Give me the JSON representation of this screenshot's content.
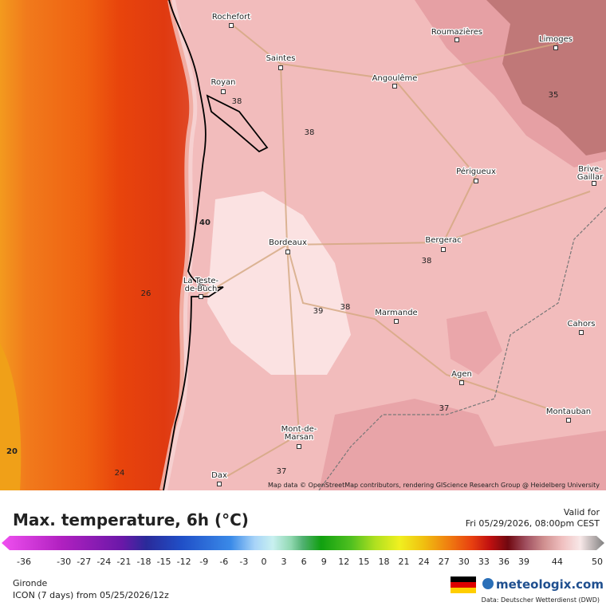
{
  "header": {
    "title": "Max. temperature, 6h (°C)",
    "valid_label": "Valid for",
    "valid_time": "Fri 05/29/2026, 08:00pm CEST"
  },
  "map": {
    "attribution": "Map data © OpenStreetMap contributors, rendering GIScience Research Group @ Heidelberg University",
    "cities": [
      [
        "Rochefort"
      ],
      [
        "Saintes"
      ],
      [
        "Royan"
      ],
      [
        "Angoulême"
      ],
      [
        "Roumazières"
      ],
      [
        "Limoges"
      ],
      [
        "Périgueux"
      ],
      [
        "Brive-",
        "Gaillar"
      ],
      [
        "Bordeaux"
      ],
      [
        "Bergerac"
      ],
      [
        "La Teste-",
        "de-Buch"
      ],
      [
        "Marmande"
      ],
      [
        "Cahors"
      ],
      [
        "Agen"
      ],
      [
        "Montauban"
      ],
      [
        "Mont-de-",
        "Marsan"
      ],
      [
        "Dax"
      ]
    ],
    "contour_labels": [
      38,
      38,
      35,
      40,
      26,
      39,
      38,
      38,
      37,
      37,
      24,
      20
    ]
  },
  "legend": {
    "ticks": [
      -36,
      -30,
      -27,
      -24,
      -21,
      -18,
      -15,
      -12,
      -9,
      -6,
      -3,
      0,
      3,
      6,
      9,
      12,
      15,
      18,
      21,
      24,
      27,
      30,
      33,
      36,
      39,
      44,
      50
    ]
  },
  "footer": {
    "region": "Gironde",
    "model_run": "ICON (7 days) from 05/25/2026/12z",
    "brand": "meteologix.com",
    "data_source": "Data: Deutscher Wetterdienst (DWD)"
  }
}
